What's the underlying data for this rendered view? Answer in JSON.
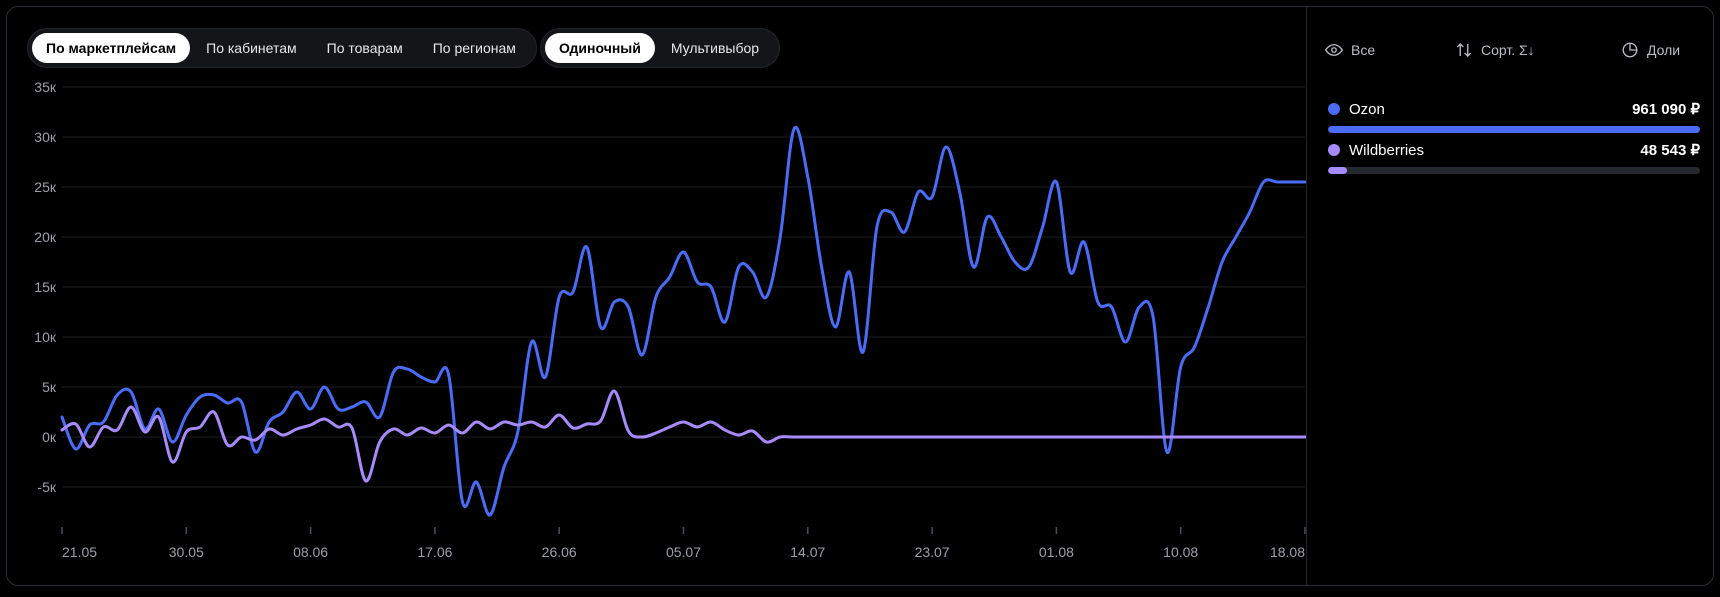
{
  "tabs_group1": [
    {
      "label": "По маркетплейсам",
      "active": true
    },
    {
      "label": "По кабинетам",
      "active": false
    },
    {
      "label": "По товарам",
      "active": false
    },
    {
      "label": "По регионам",
      "active": false
    }
  ],
  "tabs_group2": [
    {
      "label": "Одиночный",
      "active": true
    },
    {
      "label": "Мультивыбор",
      "active": false
    }
  ],
  "toolbar": {
    "all_label": "Все",
    "all_icon": "eye-icon",
    "sort_label": "Сорт. Σ↓",
    "sort_icon": "sort-arrows-icon",
    "shares_label": "Доли",
    "shares_icon": "pie-chart-icon"
  },
  "legend": [
    {
      "name": "Ozon",
      "value": "961 090 ₽",
      "color": "#4a6cf7",
      "share": 1.0
    },
    {
      "name": "Wildberries",
      "value": "48 543 ₽",
      "color": "#a78bfa",
      "share": 0.05
    }
  ],
  "chart_data": {
    "type": "line",
    "ylim": [
      -9000,
      35000
    ],
    "yticks": [
      35000,
      30000,
      25000,
      20000,
      15000,
      10000,
      5000,
      0,
      -5000
    ],
    "ytick_labels": [
      "35к",
      "30к",
      "25к",
      "20к",
      "15к",
      "10к",
      "5к",
      "0к",
      "-5к"
    ],
    "xtick_labels": [
      "21.05",
      "30.05",
      "08.06",
      "17.06",
      "26.06",
      "05.07",
      "14.07",
      "23.07",
      "01.08",
      "10.08",
      "18.08"
    ],
    "grid": true,
    "series": [
      {
        "name": "Ozon",
        "color": "#4a6cf7",
        "x": [
          0,
          1,
          2,
          3,
          4,
          5,
          6,
          7,
          8,
          9,
          10,
          11,
          12,
          13,
          14,
          15,
          16,
          17,
          18,
          19,
          20,
          21,
          22,
          23,
          24,
          25,
          26,
          27,
          28,
          29,
          30,
          31,
          32,
          33,
          34,
          35,
          36,
          37,
          38,
          39,
          40,
          41,
          42,
          43,
          44,
          45,
          46,
          47,
          48,
          49,
          50,
          51,
          52,
          53,
          54,
          55,
          56,
          57,
          58,
          59,
          60,
          61,
          62,
          63,
          64,
          65,
          66,
          67,
          68,
          69,
          70,
          71,
          72,
          73,
          74,
          75,
          76,
          77,
          78,
          79,
          80,
          81,
          82,
          83,
          84,
          85,
          86,
          87,
          88,
          89,
          90
        ],
        "values": [
          2000,
          -1200,
          1200,
          1500,
          4200,
          4500,
          800,
          2800,
          -500,
          2200,
          4000,
          4200,
          3400,
          3500,
          -1500,
          1500,
          2500,
          4500,
          2800,
          5000,
          2800,
          3000,
          3500,
          2000,
          6500,
          6800,
          6000,
          5500,
          6200,
          -6500,
          -4500,
          -7800,
          -3000,
          500,
          9500,
          6000,
          14000,
          14500,
          19000,
          11000,
          13500,
          13000,
          8200,
          14000,
          16000,
          18500,
          15500,
          15000,
          11500,
          17000,
          16500,
          14000,
          20000,
          30800,
          26000,
          17000,
          11000,
          16500,
          8500,
          21000,
          22500,
          20500,
          24500,
          24000,
          29000,
          24500,
          17000,
          22000,
          20000,
          17500,
          17000,
          21000,
          25500,
          16500,
          19500,
          13500,
          13000,
          9500,
          13000,
          12000,
          -1500,
          7000,
          9000,
          13000,
          17500,
          20000,
          22500,
          25500,
          25500,
          25500,
          25500
        ]
      },
      {
        "name": "Wildberries",
        "color": "#a78bfa",
        "x": [
          0,
          1,
          2,
          3,
          4,
          5,
          6,
          7,
          8,
          9,
          10,
          11,
          12,
          13,
          14,
          15,
          16,
          17,
          18,
          19,
          20,
          21,
          22,
          23,
          24,
          25,
          26,
          27,
          28,
          29,
          30,
          31,
          32,
          33,
          34,
          35,
          36,
          37,
          38,
          39,
          40,
          41,
          42,
          43,
          44,
          45,
          46,
          47,
          48,
          49,
          50,
          51,
          52,
          53,
          54,
          55,
          56,
          57,
          58,
          59,
          60,
          61,
          62,
          63,
          64,
          65,
          66,
          67,
          68,
          69,
          70,
          71,
          72,
          73,
          74,
          75,
          76,
          77,
          78,
          79,
          80,
          81,
          82,
          83,
          84,
          85,
          86,
          87,
          88,
          89,
          90
        ],
        "values": [
          700,
          1300,
          -1000,
          1000,
          700,
          3000,
          500,
          2000,
          -2500,
          500,
          1000,
          2500,
          -800,
          0,
          -300,
          800,
          200,
          800,
          1200,
          1800,
          1000,
          900,
          -4400,
          -500,
          800,
          200,
          900,
          400,
          1200,
          400,
          1500,
          800,
          1500,
          1200,
          1500,
          1000,
          2200,
          900,
          1300,
          1600,
          4600,
          600,
          0,
          400,
          1000,
          1500,
          1000,
          1500,
          700,
          200,
          600,
          -500,
          0,
          0,
          0,
          0,
          0,
          0,
          0,
          0,
          0,
          0,
          0,
          0,
          0,
          0,
          0,
          0,
          0,
          0,
          0,
          0,
          0,
          0,
          0,
          0,
          0,
          0,
          0,
          0,
          0,
          0,
          0,
          0,
          0,
          0,
          0,
          0,
          0,
          0,
          0
        ]
      }
    ]
  }
}
